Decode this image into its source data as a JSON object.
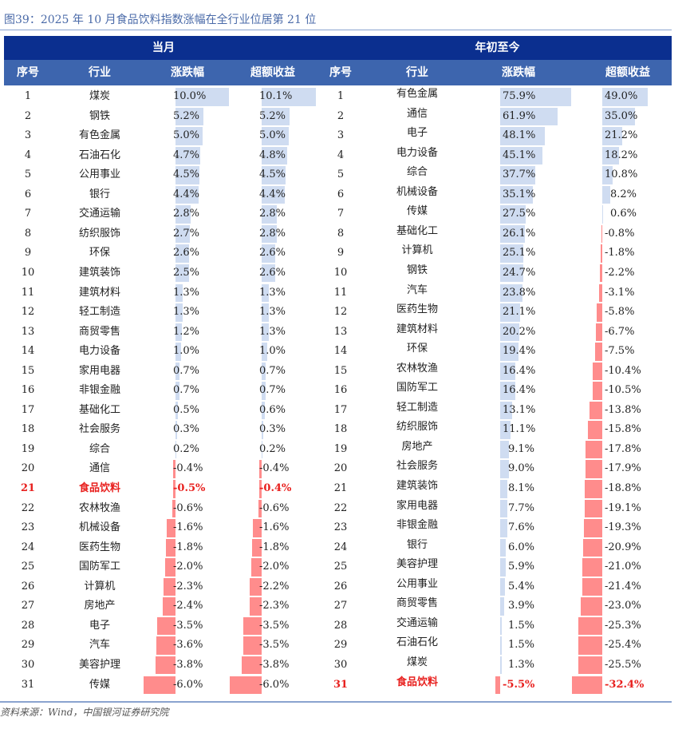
{
  "figure": {
    "title": "图39：2025 年 10 月食品饮料指数涨幅在全行业位居第 21 位",
    "source": "资料来源：Wind，中国银河证券研究院"
  },
  "colors": {
    "header_dark": "#0b2f8f",
    "header_light": "#3d65ae",
    "positive_bar": "#cfdcf1",
    "negative_bar": "#ff8c8c",
    "highlight_text": "#e8201e"
  },
  "header": {
    "group_monthly": "当月",
    "group_ytd": "年初至今",
    "columns": [
      "序号",
      "行业",
      "涨跌幅",
      "超额收益",
      "序号",
      "行业",
      "涨跌幅",
      "超额收益"
    ]
  },
  "highlight_industry": "食品饮料",
  "monthly": [
    {
      "rank": "1",
      "industry": "煤炭",
      "change": "10.0%",
      "change_v": 10.0,
      "excess": "10.1%",
      "excess_v": 10.1
    },
    {
      "rank": "2",
      "industry": "钢铁",
      "change": "5.2%",
      "change_v": 5.2,
      "excess": "5.2%",
      "excess_v": 5.2
    },
    {
      "rank": "3",
      "industry": "有色金属",
      "change": "5.0%",
      "change_v": 5.0,
      "excess": "5.0%",
      "excess_v": 5.0
    },
    {
      "rank": "4",
      "industry": "石油石化",
      "change": "4.7%",
      "change_v": 4.7,
      "excess": "4.8%",
      "excess_v": 4.8
    },
    {
      "rank": "5",
      "industry": "公用事业",
      "change": "4.5%",
      "change_v": 4.5,
      "excess": "4.5%",
      "excess_v": 4.5
    },
    {
      "rank": "6",
      "industry": "银行",
      "change": "4.4%",
      "change_v": 4.4,
      "excess": "4.4%",
      "excess_v": 4.4
    },
    {
      "rank": "7",
      "industry": "交通运输",
      "change": "2.8%",
      "change_v": 2.8,
      "excess": "2.8%",
      "excess_v": 2.8
    },
    {
      "rank": "8",
      "industry": "纺织服饰",
      "change": "2.7%",
      "change_v": 2.7,
      "excess": "2.8%",
      "excess_v": 2.8
    },
    {
      "rank": "9",
      "industry": "环保",
      "change": "2.6%",
      "change_v": 2.6,
      "excess": "2.6%",
      "excess_v": 2.6
    },
    {
      "rank": "10",
      "industry": "建筑装饰",
      "change": "2.5%",
      "change_v": 2.5,
      "excess": "2.6%",
      "excess_v": 2.6
    },
    {
      "rank": "11",
      "industry": "建筑材料",
      "change": "1.3%",
      "change_v": 1.3,
      "excess": "1.3%",
      "excess_v": 1.3
    },
    {
      "rank": "12",
      "industry": "轻工制造",
      "change": "1.3%",
      "change_v": 1.3,
      "excess": "1.3%",
      "excess_v": 1.3
    },
    {
      "rank": "13",
      "industry": "商贸零售",
      "change": "1.2%",
      "change_v": 1.2,
      "excess": "1.3%",
      "excess_v": 1.3
    },
    {
      "rank": "14",
      "industry": "电力设备",
      "change": "1.0%",
      "change_v": 1.0,
      "excess": "1.0%",
      "excess_v": 1.0
    },
    {
      "rank": "15",
      "industry": "家用电器",
      "change": "0.7%",
      "change_v": 0.7,
      "excess": "0.7%",
      "excess_v": 0.7
    },
    {
      "rank": "16",
      "industry": "非银金融",
      "change": "0.7%",
      "change_v": 0.7,
      "excess": "0.7%",
      "excess_v": 0.7
    },
    {
      "rank": "17",
      "industry": "基础化工",
      "change": "0.5%",
      "change_v": 0.5,
      "excess": "0.6%",
      "excess_v": 0.6
    },
    {
      "rank": "18",
      "industry": "社会服务",
      "change": "0.3%",
      "change_v": 0.3,
      "excess": "0.3%",
      "excess_v": 0.3
    },
    {
      "rank": "19",
      "industry": "综合",
      "change": "0.2%",
      "change_v": 0.2,
      "excess": "0.2%",
      "excess_v": 0.2
    },
    {
      "rank": "20",
      "industry": "通信",
      "change": "-0.4%",
      "change_v": -0.4,
      "excess": "-0.4%",
      "excess_v": -0.4
    },
    {
      "rank": "21",
      "industry": "食品饮料",
      "change": "-0.5%",
      "change_v": -0.5,
      "excess": "-0.4%",
      "excess_v": -0.4
    },
    {
      "rank": "22",
      "industry": "农林牧渔",
      "change": "-0.6%",
      "change_v": -0.6,
      "excess": "-0.6%",
      "excess_v": -0.6
    },
    {
      "rank": "23",
      "industry": "机械设备",
      "change": "-1.6%",
      "change_v": -1.6,
      "excess": "-1.6%",
      "excess_v": -1.6
    },
    {
      "rank": "24",
      "industry": "医药生物",
      "change": "-1.8%",
      "change_v": -1.8,
      "excess": "-1.8%",
      "excess_v": -1.8
    },
    {
      "rank": "25",
      "industry": "国防军工",
      "change": "-2.0%",
      "change_v": -2.0,
      "excess": "-2.0%",
      "excess_v": -2.0
    },
    {
      "rank": "26",
      "industry": "计算机",
      "change": "-2.3%",
      "change_v": -2.3,
      "excess": "-2.2%",
      "excess_v": -2.2
    },
    {
      "rank": "27",
      "industry": "房地产",
      "change": "-2.4%",
      "change_v": -2.4,
      "excess": "-2.3%",
      "excess_v": -2.3
    },
    {
      "rank": "28",
      "industry": "电子",
      "change": "-3.5%",
      "change_v": -3.5,
      "excess": "-3.5%",
      "excess_v": -3.5
    },
    {
      "rank": "29",
      "industry": "汽车",
      "change": "-3.6%",
      "change_v": -3.6,
      "excess": "-3.5%",
      "excess_v": -3.5
    },
    {
      "rank": "30",
      "industry": "美容护理",
      "change": "-3.8%",
      "change_v": -3.8,
      "excess": "-3.8%",
      "excess_v": -3.8
    },
    {
      "rank": "31",
      "industry": "传媒",
      "change": "-6.0%",
      "change_v": -6.0,
      "excess": "-6.0%",
      "excess_v": -6.0
    }
  ],
  "ytd": [
    {
      "rank": "1",
      "industry": "有色金属",
      "change": "75.9%",
      "change_v": 75.9,
      "excess": "49.0%",
      "excess_v": 49.0
    },
    {
      "rank": "2",
      "industry": "通信",
      "change": "61.9%",
      "change_v": 61.9,
      "excess": "35.0%",
      "excess_v": 35.0
    },
    {
      "rank": "3",
      "industry": "电子",
      "change": "48.1%",
      "change_v": 48.1,
      "excess": "21.2%",
      "excess_v": 21.2
    },
    {
      "rank": "4",
      "industry": "电力设备",
      "change": "45.1%",
      "change_v": 45.1,
      "excess": "18.2%",
      "excess_v": 18.2
    },
    {
      "rank": "5",
      "industry": "综合",
      "change": "37.7%",
      "change_v": 37.7,
      "excess": "10.8%",
      "excess_v": 10.8
    },
    {
      "rank": "6",
      "industry": "机械设备",
      "change": "35.1%",
      "change_v": 35.1,
      "excess": "8.2%",
      "excess_v": 8.2
    },
    {
      "rank": "7",
      "industry": "传媒",
      "change": "27.5%",
      "change_v": 27.5,
      "excess": "0.6%",
      "excess_v": 0.6
    },
    {
      "rank": "8",
      "industry": "基础化工",
      "change": "26.1%",
      "change_v": 26.1,
      "excess": "-0.8%",
      "excess_v": -0.8
    },
    {
      "rank": "9",
      "industry": "计算机",
      "change": "25.1%",
      "change_v": 25.1,
      "excess": "-1.8%",
      "excess_v": -1.8
    },
    {
      "rank": "10",
      "industry": "钢铁",
      "change": "24.7%",
      "change_v": 24.7,
      "excess": "-2.2%",
      "excess_v": -2.2
    },
    {
      "rank": "11",
      "industry": "汽车",
      "change": "23.8%",
      "change_v": 23.8,
      "excess": "-3.1%",
      "excess_v": -3.1
    },
    {
      "rank": "12",
      "industry": "医药生物",
      "change": "21.1%",
      "change_v": 21.1,
      "excess": "-5.8%",
      "excess_v": -5.8
    },
    {
      "rank": "13",
      "industry": "建筑材料",
      "change": "20.2%",
      "change_v": 20.2,
      "excess": "-6.7%",
      "excess_v": -6.7
    },
    {
      "rank": "14",
      "industry": "环保",
      "change": "19.4%",
      "change_v": 19.4,
      "excess": "-7.5%",
      "excess_v": -7.5
    },
    {
      "rank": "15",
      "industry": "农林牧渔",
      "change": "16.4%",
      "change_v": 16.4,
      "excess": "-10.4%",
      "excess_v": -10.4
    },
    {
      "rank": "16",
      "industry": "国防军工",
      "change": "16.4%",
      "change_v": 16.4,
      "excess": "-10.5%",
      "excess_v": -10.5
    },
    {
      "rank": "17",
      "industry": "轻工制造",
      "change": "13.1%",
      "change_v": 13.1,
      "excess": "-13.8%",
      "excess_v": -13.8
    },
    {
      "rank": "18",
      "industry": "纺织服饰",
      "change": "11.1%",
      "change_v": 11.1,
      "excess": "-15.8%",
      "excess_v": -15.8
    },
    {
      "rank": "19",
      "industry": "房地产",
      "change": "9.1%",
      "change_v": 9.1,
      "excess": "-17.8%",
      "excess_v": -17.8
    },
    {
      "rank": "20",
      "industry": "社会服务",
      "change": "9.0%",
      "change_v": 9.0,
      "excess": "-17.9%",
      "excess_v": -17.9
    },
    {
      "rank": "21",
      "industry": "建筑装饰",
      "change": "8.1%",
      "change_v": 8.1,
      "excess": "-18.8%",
      "excess_v": -18.8
    },
    {
      "rank": "22",
      "industry": "家用电器",
      "change": "7.7%",
      "change_v": 7.7,
      "excess": "-19.1%",
      "excess_v": -19.1
    },
    {
      "rank": "23",
      "industry": "非银金融",
      "change": "7.6%",
      "change_v": 7.6,
      "excess": "-19.3%",
      "excess_v": -19.3
    },
    {
      "rank": "24",
      "industry": "银行",
      "change": "6.0%",
      "change_v": 6.0,
      "excess": "-20.9%",
      "excess_v": -20.9
    },
    {
      "rank": "25",
      "industry": "美容护理",
      "change": "5.9%",
      "change_v": 5.9,
      "excess": "-21.0%",
      "excess_v": -21.0
    },
    {
      "rank": "26",
      "industry": "公用事业",
      "change": "5.4%",
      "change_v": 5.4,
      "excess": "-21.4%",
      "excess_v": -21.4
    },
    {
      "rank": "27",
      "industry": "商贸零售",
      "change": "3.9%",
      "change_v": 3.9,
      "excess": "-23.0%",
      "excess_v": -23.0
    },
    {
      "rank": "28",
      "industry": "交通运输",
      "change": "1.5%",
      "change_v": 1.5,
      "excess": "-25.3%",
      "excess_v": -25.3
    },
    {
      "rank": "29",
      "industry": "石油石化",
      "change": "1.5%",
      "change_v": 1.5,
      "excess": "-25.4%",
      "excess_v": -25.4
    },
    {
      "rank": "30",
      "industry": "煤炭",
      "change": "1.3%",
      "change_v": 1.3,
      "excess": "-25.5%",
      "excess_v": -25.5
    },
    {
      "rank": "31",
      "industry": "食品饮料",
      "change": "-5.5%",
      "change_v": -5.5,
      "excess": "-32.4%",
      "excess_v": -32.4
    }
  ]
}
